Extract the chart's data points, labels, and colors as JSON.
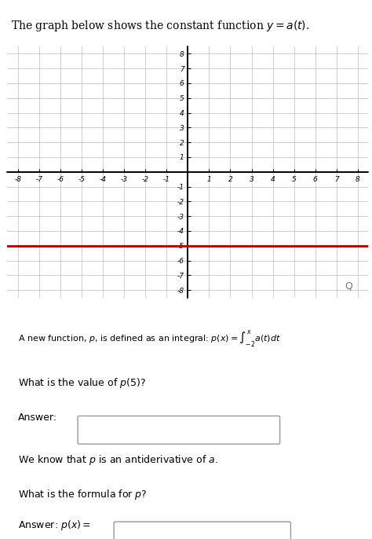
{
  "title_text": "The graph below shows the constant function $y = a(t)$.",
  "xlim": [
    -8.5,
    8.5
  ],
  "ylim": [
    -8.5,
    8.5
  ],
  "xticks": [
    -8,
    -7,
    -6,
    -5,
    -4,
    -3,
    -2,
    -1,
    1,
    2,
    3,
    4,
    5,
    6,
    7,
    8
  ],
  "yticks": [
    -8,
    -7,
    -6,
    -5,
    -4,
    -3,
    -2,
    -1,
    1,
    2,
    3,
    4,
    5,
    6,
    7,
    8
  ],
  "constant_value": -5,
  "line_color": "#cc0000",
  "line_width": 2.2,
  "grid_color": "#bbbbbb",
  "axis_color": "#000000",
  "bg_color": "#ffffff",
  "text1": "A new function, $p$, is defined as an integral: $p(x) = \\displaystyle\\int_{-2}^{x} a(t)dt$",
  "text2": "What is the value of $p(5)$?",
  "text3": "Answer:",
  "text4": "We know that $p$ is an antiderivative of $a$.",
  "text5": "What is the formula for $p$?",
  "text6": "Answer: $p(x) =$"
}
